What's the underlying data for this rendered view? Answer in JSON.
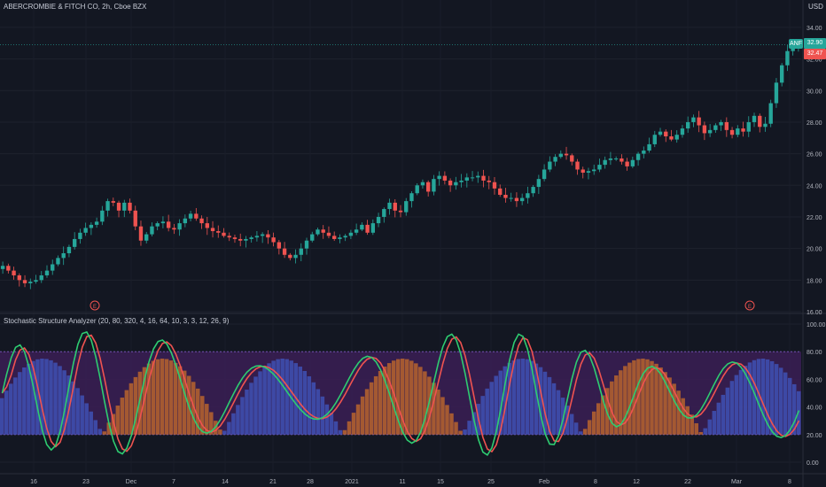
{
  "header": {
    "symbol_title": "ABERCROMBIE & FITCH CO, 2h, Cboe BZX",
    "currency": "USD"
  },
  "indicator": {
    "title": "Stochastic Structure Analyzer (20, 80, 320, 4, 16, 64, 10, 3, 3, 12, 26, 9)"
  },
  "price_axis": {
    "ticks": [
      "34.00",
      "32.00",
      "30.00",
      "28.00",
      "26.00",
      "24.00",
      "22.00",
      "20.00",
      "18.00",
      "16.00"
    ]
  },
  "osc_axis": {
    "ticks": [
      "100.00",
      "80.00",
      "60.00",
      "40.00",
      "20.00",
      "0.00"
    ]
  },
  "time_axis": {
    "labels": [
      "16",
      "23",
      "Dec",
      "7",
      "14",
      "21",
      "28",
      "2021",
      "11",
      "15",
      "25",
      "Feb",
      "8",
      "12",
      "22",
      "Mar",
      "8"
    ]
  },
  "badges": {
    "ticker": "ANF",
    "last_price": "32.90",
    "open_price": "32.47"
  },
  "events": [
    {
      "label": "E"
    },
    {
      "label": "E"
    }
  ],
  "colors": {
    "background": "#131722",
    "up_candle": "#26a69a",
    "down_candle": "#ef5350",
    "zone_fill": "#3b1f55",
    "hist_blue": "#3f51b5",
    "hist_orange": "#b8642e",
    "stoch_k": "#2ecc71",
    "stoch_d": "#ef5350",
    "price_line": "#26a69a"
  },
  "chart_data": {
    "type": "candlestick",
    "ylim": [
      16,
      34.5
    ],
    "closes": [
      18.9,
      18.6,
      18.3,
      18.0,
      17.8,
      17.9,
      18.0,
      18.3,
      18.6,
      19.0,
      19.4,
      19.7,
      20.1,
      20.6,
      21.0,
      21.3,
      21.5,
      21.7,
      22.4,
      23.0,
      22.9,
      22.4,
      22.9,
      22.4,
      21.4,
      20.5,
      20.9,
      21.4,
      21.6,
      21.7,
      21.3,
      21.2,
      21.6,
      21.9,
      22.2,
      21.9,
      21.6,
      21.3,
      21.1,
      21.0,
      20.8,
      20.7,
      20.6,
      20.5,
      20.6,
      20.7,
      20.8,
      20.9,
      20.7,
      20.4,
      20.0,
      19.6,
      19.4,
      19.6,
      20.0,
      20.5,
      20.9,
      21.2,
      21.0,
      20.8,
      20.6,
      20.7,
      20.8,
      21.0,
      21.2,
      21.5,
      21.0,
      21.6,
      22.0,
      22.5,
      22.9,
      22.4,
      22.3,
      23.0,
      23.5,
      24.0,
      24.2,
      23.6,
      24.4,
      24.6,
      24.3,
      24.0,
      24.2,
      24.3,
      24.5,
      24.5,
      24.6,
      24.3,
      24.2,
      23.8,
      23.4,
      23.2,
      23.2,
      23.0,
      23.2,
      23.5,
      23.9,
      24.4,
      25.0,
      25.5,
      25.8,
      26.0,
      25.9,
      25.5,
      25.0,
      24.8,
      24.9,
      25.0,
      25.3,
      25.6,
      25.7,
      25.7,
      25.5,
      25.2,
      25.6,
      26.0,
      26.2,
      26.6,
      27.2,
      27.4,
      27.1,
      26.9,
      27.2,
      27.6,
      28.0,
      28.3,
      27.8,
      27.3,
      27.5,
      27.8,
      28.0,
      27.5,
      27.2,
      27.6,
      27.4,
      28.0,
      28.4,
      27.7,
      27.9,
      29.2,
      30.5,
      31.6,
      32.5,
      32.7,
      32.9
    ]
  }
}
